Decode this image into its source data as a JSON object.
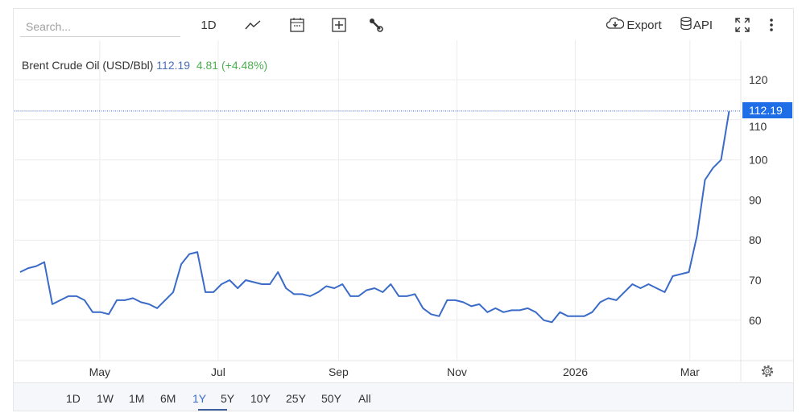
{
  "toolbar": {
    "search_placeholder": "Search...",
    "interval": "1D",
    "export": "Export",
    "api": "API"
  },
  "legend": {
    "name": "Brent Crude Oil (USD/Bbl)",
    "value": "112.19",
    "change": "4.81 (+4.48%)"
  },
  "price_tag": "112.19",
  "ranges": [
    "1D",
    "1W",
    "1M",
    "6M",
    "1Y",
    "5Y",
    "10Y",
    "25Y",
    "50Y",
    "All"
  ],
  "active_range": "1Y",
  "colors": {
    "line": "#3a6bc8",
    "accent": "#1e6ee8",
    "change": "#4caf50"
  },
  "chart_data": {
    "type": "line",
    "title": "Brent Crude Oil (USD/Bbl)",
    "start_date": "2025-03-21",
    "interval_days": 4.15,
    "series": [
      {
        "name": "Brent Crude Oil",
        "values": [
          72,
          73,
          73.5,
          74.5,
          64,
          65,
          66,
          66,
          65,
          62,
          62,
          61.5,
          65,
          65,
          65.5,
          64.5,
          64,
          63,
          65,
          67,
          74,
          76.5,
          77,
          67,
          67,
          69,
          70,
          68,
          70,
          69.5,
          69,
          69,
          72,
          68,
          66.5,
          66.5,
          66,
          67,
          68.5,
          68,
          69,
          66,
          66,
          67.5,
          68,
          67,
          69,
          66,
          66,
          66.5,
          63,
          61.5,
          61,
          65,
          65,
          64.5,
          63.5,
          64,
          62,
          63,
          62,
          62.5,
          62.5,
          63,
          62,
          60,
          59.5,
          62,
          61,
          61,
          61,
          62,
          64.5,
          65.5,
          65,
          67,
          69,
          68,
          69,
          68,
          67,
          71,
          71.5,
          72,
          81,
          95,
          98,
          100,
          112.19
        ]
      }
    ],
    "x_ticks": [
      {
        "label": "May",
        "day": 41
      },
      {
        "label": "Jul",
        "day": 102
      },
      {
        "label": "Sep",
        "day": 164
      },
      {
        "label": "Nov",
        "day": 225
      },
      {
        "label": "2026",
        "day": 286
      },
      {
        "label": "Mar",
        "day": 345
      }
    ],
    "y_ticks": [
      60,
      70,
      80,
      90,
      100,
      110,
      120
    ],
    "ylim": [
      50,
      124
    ],
    "grid": true,
    "last_value": 112.19
  }
}
